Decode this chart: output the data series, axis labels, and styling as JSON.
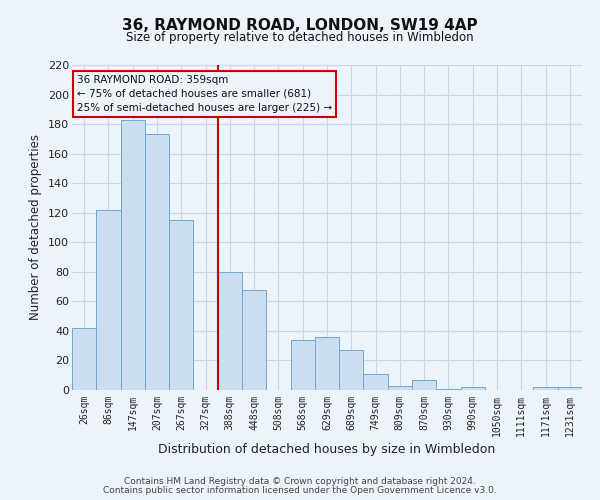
{
  "title": "36, RAYMOND ROAD, LONDON, SW19 4AP",
  "subtitle": "Size of property relative to detached houses in Wimbledon",
  "xlabel": "Distribution of detached houses by size in Wimbledon",
  "ylabel": "Number of detached properties",
  "footer_line1": "Contains HM Land Registry data © Crown copyright and database right 2024.",
  "footer_line2": "Contains public sector information licensed under the Open Government Licence v3.0.",
  "bin_labels": [
    "26sqm",
    "86sqm",
    "147sqm",
    "207sqm",
    "267sqm",
    "327sqm",
    "388sqm",
    "448sqm",
    "508sqm",
    "568sqm",
    "629sqm",
    "689sqm",
    "749sqm",
    "809sqm",
    "870sqm",
    "930sqm",
    "990sqm",
    "1050sqm",
    "1111sqm",
    "1171sqm",
    "1231sqm"
  ],
  "bar_heights": [
    42,
    122,
    183,
    173,
    115,
    0,
    80,
    68,
    0,
    34,
    36,
    27,
    11,
    3,
    7,
    1,
    2,
    0,
    0,
    2,
    2
  ],
  "bar_color": "#ccddf0",
  "bar_edge_color": "#6aaad4",
  "vline_x": 5.5,
  "vline_color": "#cc0000",
  "ylim": [
    0,
    220
  ],
  "yticks": [
    0,
    20,
    40,
    60,
    80,
    100,
    120,
    140,
    160,
    180,
    200,
    220
  ],
  "annotation_title": "36 RAYMOND ROAD: 359sqm",
  "annotation_line1": "← 75% of detached houses are smaller (681)",
  "annotation_line2": "25% of semi-detached houses are larger (225) →",
  "annotation_box_color": "#cc0000",
  "grid_color": "#c8d8e8",
  "bg_color": "#edf3fa"
}
